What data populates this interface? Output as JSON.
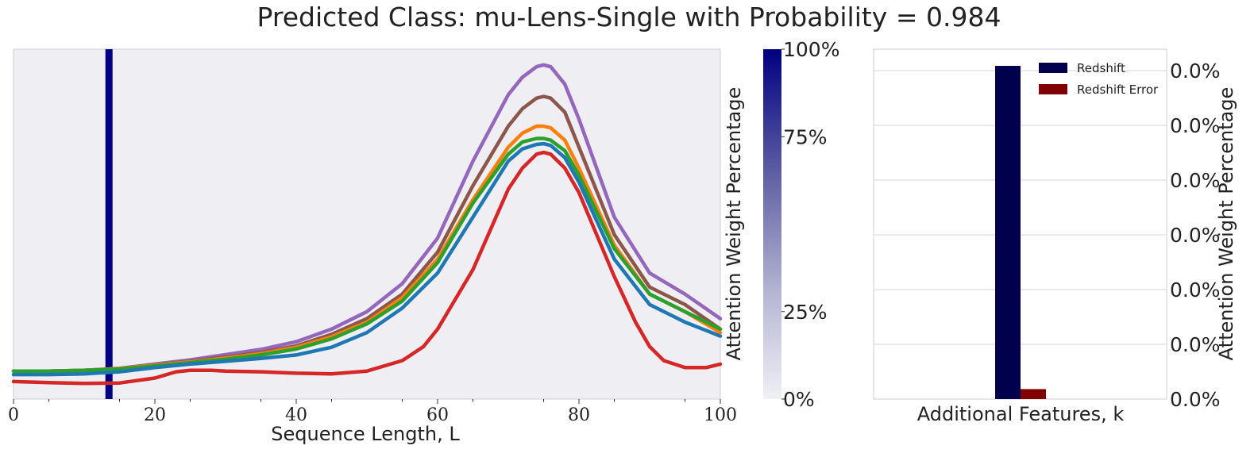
{
  "title": "Predicted Class: mu-Lens-Single with Probability = 0.984",
  "colors": {
    "panel_bg": "#efeef2",
    "attention_bar": "#000080",
    "colorbar_top": "#000080",
    "colorbar_bottom": "#f0f0f5",
    "redshift": "#00004d",
    "redshift_error": "#800000"
  },
  "chart_data": [
    {
      "type": "line",
      "xlabel": "Sequence Length, L",
      "ylabel": "",
      "xlim": [
        0,
        100
      ],
      "ylim": [
        0,
        1
      ],
      "grid": false,
      "x_ticks": [
        0,
        20,
        40,
        60,
        80,
        100
      ],
      "x_tick_labels": [
        "0",
        "20",
        "40",
        "60",
        "80",
        "100"
      ],
      "x_minor_ticks": [
        5,
        15,
        25,
        35,
        45,
        55,
        65,
        75,
        85,
        95
      ],
      "attention_marker": {
        "x": 13.5
      },
      "series": [
        {
          "color": "#9467bd",
          "x": [
            0,
            5,
            10,
            15,
            20,
            25,
            30,
            35,
            40,
            45,
            50,
            55,
            60,
            65,
            70,
            72,
            74,
            75,
            76,
            78,
            80,
            85,
            90,
            95,
            100
          ],
          "y": [
            0.08,
            0.08,
            0.082,
            0.088,
            0.1,
            0.112,
            0.127,
            0.142,
            0.164,
            0.2,
            0.25,
            0.33,
            0.46,
            0.68,
            0.87,
            0.92,
            0.95,
            0.955,
            0.95,
            0.9,
            0.8,
            0.52,
            0.36,
            0.3,
            0.23
          ]
        },
        {
          "color": "#8c564b",
          "x": [
            0,
            5,
            10,
            15,
            20,
            25,
            30,
            35,
            40,
            45,
            50,
            55,
            60,
            65,
            70,
            72,
            74,
            75,
            76,
            78,
            80,
            85,
            90,
            95,
            100
          ],
          "y": [
            0.08,
            0.08,
            0.082,
            0.087,
            0.098,
            0.108,
            0.12,
            0.133,
            0.152,
            0.185,
            0.23,
            0.3,
            0.42,
            0.61,
            0.78,
            0.83,
            0.86,
            0.865,
            0.86,
            0.82,
            0.72,
            0.47,
            0.32,
            0.27,
            0.2
          ]
        },
        {
          "color": "#ff7f0e",
          "x": [
            0,
            5,
            10,
            15,
            20,
            25,
            30,
            35,
            40,
            45,
            50,
            55,
            60,
            65,
            70,
            72,
            74,
            75,
            76,
            78,
            80,
            85,
            90,
            95,
            100
          ],
          "y": [
            0.08,
            0.08,
            0.082,
            0.087,
            0.097,
            0.106,
            0.117,
            0.13,
            0.148,
            0.178,
            0.22,
            0.29,
            0.4,
            0.57,
            0.72,
            0.76,
            0.78,
            0.78,
            0.775,
            0.74,
            0.66,
            0.44,
            0.3,
            0.25,
            0.19
          ]
        },
        {
          "color": "#2ca02c",
          "x": [
            0,
            5,
            10,
            15,
            20,
            25,
            30,
            35,
            40,
            45,
            50,
            55,
            60,
            65,
            70,
            72,
            74,
            75,
            76,
            78,
            80,
            85,
            90,
            95,
            100
          ],
          "y": [
            0.08,
            0.08,
            0.082,
            0.086,
            0.095,
            0.104,
            0.114,
            0.126,
            0.143,
            0.172,
            0.215,
            0.28,
            0.39,
            0.56,
            0.7,
            0.735,
            0.745,
            0.745,
            0.74,
            0.71,
            0.64,
            0.43,
            0.3,
            0.25,
            0.2
          ]
        },
        {
          "color": "#1f77b4",
          "x": [
            0,
            5,
            10,
            15,
            20,
            25,
            30,
            35,
            40,
            45,
            50,
            55,
            60,
            65,
            70,
            72,
            74,
            75,
            76,
            78,
            80,
            85,
            90,
            95,
            100
          ],
          "y": [
            0.07,
            0.07,
            0.072,
            0.078,
            0.09,
            0.1,
            0.108,
            0.116,
            0.126,
            0.148,
            0.19,
            0.26,
            0.36,
            0.52,
            0.68,
            0.715,
            0.728,
            0.73,
            0.725,
            0.69,
            0.62,
            0.4,
            0.27,
            0.22,
            0.18
          ]
        },
        {
          "color": "#d62728",
          "x": [
            0,
            5,
            10,
            15,
            20,
            23,
            25,
            28,
            30,
            35,
            40,
            45,
            50,
            55,
            58,
            60,
            65,
            70,
            72,
            74,
            75,
            76,
            78,
            80,
            85,
            88,
            90,
            92,
            95,
            98,
            100
          ],
          "y": [
            0.05,
            0.047,
            0.045,
            0.046,
            0.06,
            0.078,
            0.082,
            0.082,
            0.08,
            0.078,
            0.074,
            0.072,
            0.08,
            0.11,
            0.15,
            0.2,
            0.37,
            0.6,
            0.66,
            0.7,
            0.705,
            0.7,
            0.66,
            0.59,
            0.35,
            0.22,
            0.15,
            0.11,
            0.09,
            0.09,
            0.1
          ]
        }
      ]
    },
    {
      "type": "bar",
      "xlabel": "Additional Features, k",
      "ylabel": "Attention Weight Percentage",
      "y_tick_labels": [
        "0.0%",
        "0.0%",
        "0.0%",
        "0.0%",
        "0.0%",
        "0.0%",
        "0.0%"
      ],
      "grid": true,
      "legend_position": "top-right",
      "series": [
        {
          "name": "Redshift",
          "color": "#00004d",
          "value": 1.0
        },
        {
          "name": "Redshift Error",
          "color": "#800000",
          "value": 0.03
        }
      ]
    }
  ],
  "colorbar": {
    "label": "Attention Weight Percentage",
    "tick_labels": [
      "100%",
      "75%",
      "25%",
      "0%"
    ],
    "tick_values": [
      1.0,
      0.75,
      0.25,
      0.0
    ]
  }
}
